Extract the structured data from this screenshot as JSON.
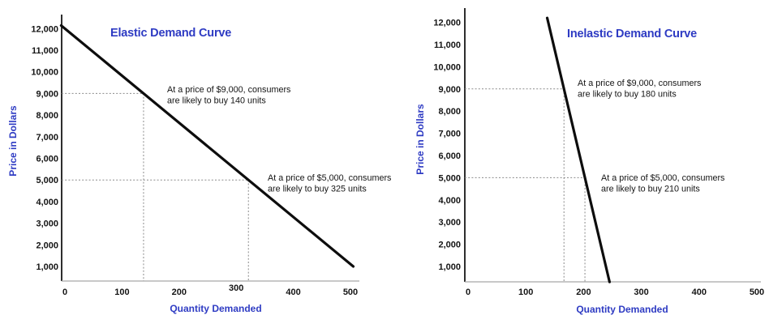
{
  "figure": {
    "background": "#ffffff",
    "colors": {
      "accent_blue": "#2e3bc3",
      "text": "#141414",
      "demand_line": "#0d0d0d",
      "guide_dash": "#8a8a8a",
      "y_axis": "#2e2e2e",
      "x_axis": "#a6a6a6"
    }
  },
  "chart_data": [
    {
      "type": "line",
      "title": "Elastic Demand Curve",
      "xlabel": "Quantity Demanded",
      "ylabel": "Price in Dollars",
      "x_ticks": [
        0,
        100,
        200,
        300,
        400,
        500
      ],
      "y_ticks": [
        12000,
        11000,
        10000,
        9000,
        8000,
        7000,
        6000,
        5000,
        4000,
        3000,
        2000,
        1000
      ],
      "y_tick_labels": [
        "12,000",
        "11,000",
        "10,000",
        "9,000",
        "8,000",
        "7,000",
        "6,000",
        "5,000",
        "4,000",
        "3,000",
        "2,000",
        "1,000"
      ],
      "xlim": [
        0,
        520
      ],
      "ylim": [
        0,
        12700
      ],
      "grid": false,
      "legend": null,
      "series": [
        {
          "name": "elastic-demand",
          "points": [
            {
              "quantity": 0,
              "price": 12000
            },
            {
              "quantity": 505,
              "price": 1000
            }
          ]
        }
      ],
      "annotations": [
        {
          "price": 9000,
          "quantity": 140,
          "text_lines": [
            "At a price of $9,000, consumers",
            "are likely to buy 140 units"
          ]
        },
        {
          "price": 5000,
          "quantity": 325,
          "text_lines": [
            "At a price of $5,000, consumers",
            "are likely to buy 325 units"
          ]
        }
      ]
    },
    {
      "type": "line",
      "title": "Inelastic Demand Curve",
      "xlabel": "Quantity Demanded",
      "ylabel": "Price in Dollars",
      "x_ticks": [
        0,
        100,
        200,
        300,
        400,
        500
      ],
      "y_ticks": [
        12000,
        11000,
        10000,
        9000,
        8000,
        7000,
        6000,
        5000,
        4000,
        3000,
        2000,
        1000
      ],
      "y_tick_labels": [
        "12,000",
        "11,000",
        "10,000",
        "9,000",
        "8,000",
        "7,000",
        "6,000",
        "5,000",
        "4,000",
        "3,000",
        "2,000",
        "1,000"
      ],
      "xlim": [
        0,
        520
      ],
      "ylim": [
        0,
        12700
      ],
      "grid": false,
      "legend": null,
      "series": [
        {
          "name": "inelastic-demand",
          "points": [
            {
              "quantity": 137,
              "price": 12200
            },
            {
              "quantity": 245,
              "price": 300
            }
          ]
        }
      ],
      "annotations": [
        {
          "price": 9000,
          "quantity": 180,
          "text_lines": [
            "At a price of $9,000, consumers",
            "are likely to buy 180 units"
          ]
        },
        {
          "price": 5000,
          "quantity": 210,
          "text_lines": [
            "At a price of $5,000, consumers",
            "are likely to buy 210 units"
          ]
        }
      ]
    }
  ]
}
